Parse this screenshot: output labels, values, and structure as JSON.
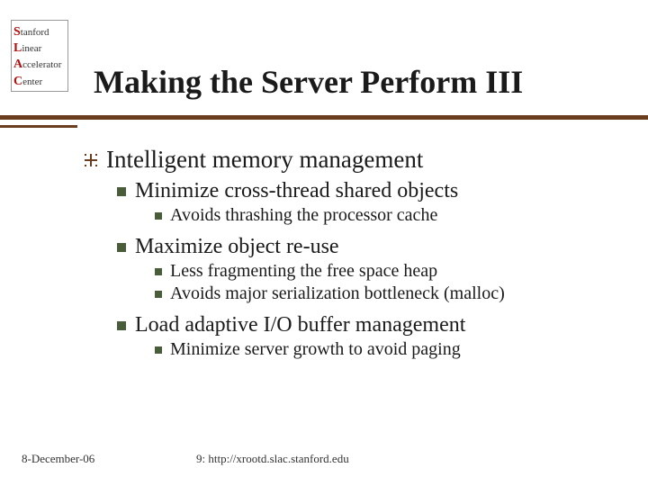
{
  "logo": {
    "lines": [
      {
        "cap": "S",
        "rest": "tanford"
      },
      {
        "cap": "L",
        "rest": "inear"
      },
      {
        "cap": "A",
        "rest": "ccelerator"
      },
      {
        "cap": "C",
        "rest": "enter"
      }
    ]
  },
  "title": "Making the Server Perform III",
  "bullets": {
    "l1": "Intelligent memory management",
    "l2a": "Minimize cross-thread shared objects",
    "l3a": "Avoids thrashing the processor cache",
    "l2b": "Maximize object re-use",
    "l3b": "Less fragmenting the free space heap",
    "l3c": "Avoids major serialization bottleneck (malloc)",
    "l2c": "Load adaptive I/O buffer management",
    "l3d": "Minimize server growth to avoid paging"
  },
  "footer": {
    "date": "8-December-06",
    "url": "9: http://xrootd.slac.stanford.edu"
  },
  "colors": {
    "accent": "#6b3d1f",
    "bullet": "#4a5d3a",
    "text": "#1a1a1a",
    "logo_cap": "#b01010"
  }
}
